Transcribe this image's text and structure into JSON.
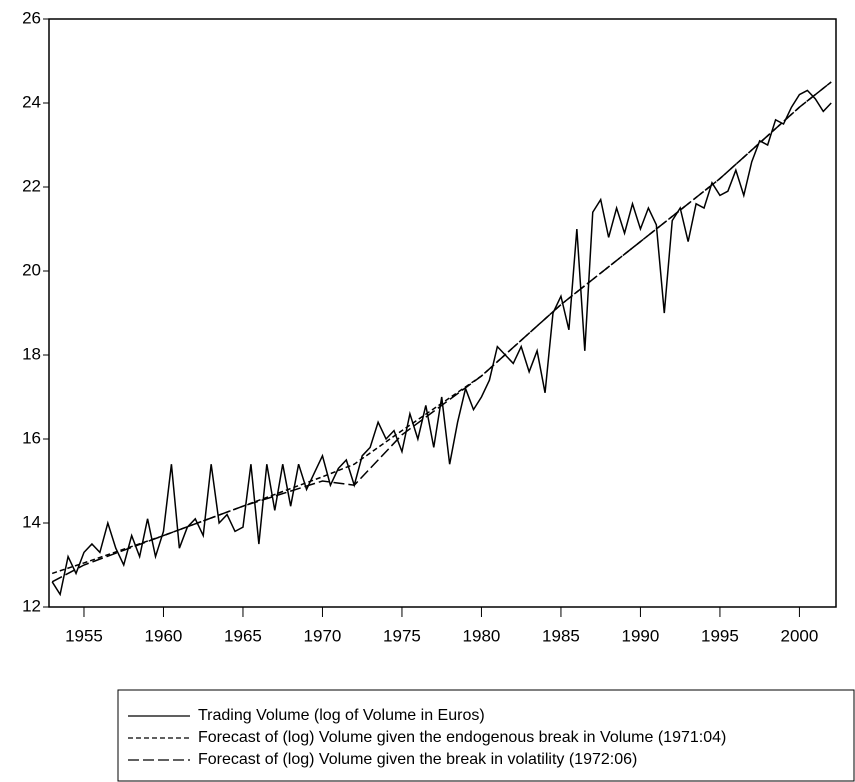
{
  "chart_data": {
    "type": "line",
    "xlim": [
      1952.8,
      2002.3
    ],
    "ylim": [
      12,
      26
    ],
    "xticks": [
      1955,
      1960,
      1965,
      1970,
      1975,
      1980,
      1985,
      1990,
      1995,
      2000
    ],
    "yticks": [
      12,
      14,
      16,
      18,
      20,
      22,
      24,
      26
    ],
    "series": [
      {
        "name": "Trading Volume (log of Volume in Euros)",
        "color": "#000000",
        "line_style": "solid",
        "x": [
          1953.0,
          1953.5,
          1954.0,
          1954.5,
          1955.0,
          1955.5,
          1956.0,
          1956.5,
          1957.0,
          1957.5,
          1958.0,
          1958.5,
          1959.0,
          1959.5,
          1960.0,
          1960.5,
          1961.0,
          1961.5,
          1962.0,
          1962.5,
          1963.0,
          1963.5,
          1964.0,
          1964.5,
          1965.0,
          1965.5,
          1966.0,
          1966.5,
          1967.0,
          1967.5,
          1968.0,
          1968.5,
          1969.0,
          1969.5,
          1970.0,
          1970.5,
          1971.0,
          1971.5,
          1972.0,
          1972.5,
          1973.0,
          1973.5,
          1974.0,
          1974.5,
          1975.0,
          1975.5,
          1976.0,
          1976.5,
          1977.0,
          1977.5,
          1978.0,
          1978.5,
          1979.0,
          1979.5,
          1980.0,
          1980.5,
          1981.0,
          1981.5,
          1982.0,
          1982.5,
          1983.0,
          1983.5,
          1984.0,
          1984.5,
          1985.0,
          1985.5,
          1986.0,
          1986.5,
          1987.0,
          1987.5,
          1988.0,
          1988.5,
          1989.0,
          1989.5,
          1990.0,
          1990.5,
          1991.0,
          1991.5,
          1992.0,
          1992.5,
          1993.0,
          1993.5,
          1994.0,
          1994.5,
          1995.0,
          1995.5,
          1996.0,
          1996.5,
          1997.0,
          1997.5,
          1998.0,
          1998.5,
          1999.0,
          1999.5,
          2000.0,
          2000.5,
          2001.0,
          2001.5,
          2002.0
        ],
        "values": [
          12.6,
          12.3,
          13.2,
          12.8,
          13.3,
          13.5,
          13.3,
          14.0,
          13.4,
          13.0,
          13.7,
          13.2,
          14.1,
          13.2,
          13.8,
          15.4,
          13.4,
          13.9,
          14.1,
          13.7,
          15.4,
          14.0,
          14.2,
          13.8,
          13.9,
          15.4,
          13.5,
          15.4,
          14.3,
          15.4,
          14.4,
          15.4,
          14.8,
          15.2,
          15.6,
          14.9,
          15.3,
          15.5,
          14.9,
          15.6,
          15.8,
          16.4,
          16.0,
          16.2,
          15.7,
          16.6,
          16.0,
          16.8,
          15.8,
          17.0,
          15.4,
          16.4,
          17.2,
          16.7,
          17.0,
          17.4,
          18.2,
          18.0,
          17.8,
          18.2,
          17.6,
          18.1,
          17.1,
          19.0,
          19.4,
          18.6,
          21.0,
          18.1,
          21.4,
          21.7,
          20.8,
          21.5,
          20.9,
          21.6,
          21.0,
          21.5,
          21.1,
          19.0,
          21.2,
          21.5,
          20.7,
          21.6,
          21.5,
          22.1,
          21.8,
          21.9,
          22.4,
          21.8,
          22.6,
          23.1,
          23.0,
          23.6,
          23.5,
          23.9,
          24.2,
          24.3,
          24.1,
          23.8,
          24.0
        ]
      },
      {
        "name": "Forecast of (log) Volume given the endogenous break in Volume (1971:04)",
        "color": "#000000",
        "line_style": "short-dash",
        "x": [
          1953,
          1955,
          1960,
          1965,
          1970,
          1972,
          1975,
          1980,
          1985,
          1990,
          1995,
          2000,
          2002
        ],
        "values": [
          12.8,
          13.05,
          13.7,
          14.4,
          15.1,
          15.4,
          16.2,
          17.5,
          19.2,
          20.7,
          22.2,
          23.9,
          24.5
        ]
      },
      {
        "name": "Forecast of (log) Volume given the break in volatility (1972:06)",
        "color": "#000000",
        "line_style": "long-dash",
        "x": [
          1953,
          1955,
          1960,
          1965,
          1970,
          1972,
          1973,
          1975,
          1980,
          1985,
          1990,
          1995,
          2000,
          2002
        ],
        "values": [
          12.6,
          13.0,
          13.7,
          14.4,
          15.0,
          14.9,
          15.3,
          16.1,
          17.5,
          19.2,
          20.7,
          22.2,
          23.9,
          24.5
        ]
      }
    ]
  }
}
